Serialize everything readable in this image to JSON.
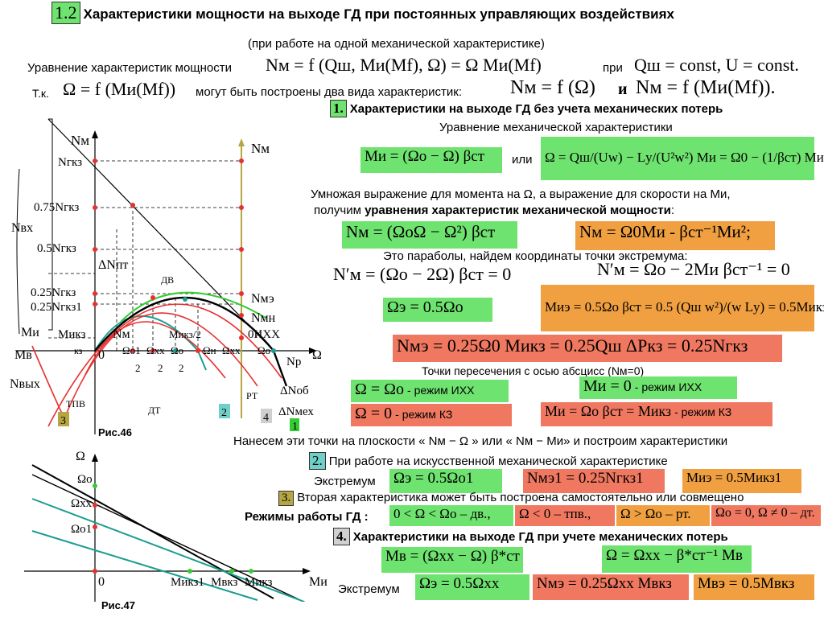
{
  "title": {
    "number": "1.2",
    "text": "Характеристики мощности на выходе ГД при постоянных управляющих воздействиях",
    "subtitle": "(при работе на одной механической характеристике)"
  },
  "colors": {
    "green": "#6fe36f",
    "orange": "#f0a040",
    "red": "#f07860",
    "teal": "#70d0c8",
    "olive": "#b5a642",
    "curve_green": "#33cc33",
    "curve_teal": "#1a9e8f",
    "curve_red": "#e83030"
  },
  "intro": {
    "eq_label": "Уравнение характеристик мощности",
    "eq_formula": "Nм = f (Qш, Mи(Mf), Ω) = Ω Mи(Mf)",
    "eq_when": "при",
    "eq_cond": "Qш = const, U = const.",
    "tk_label": "Т.к.",
    "tk_formula": "Ω = f (Mи(Mf))",
    "tk_text": "могут быть построены два вида характеристик:",
    "tk_f1": "Nм = f (Ω)",
    "tk_and": "и",
    "tk_f2": "Nм = f (Mи(Mf))."
  },
  "section1": {
    "number": "1.",
    "heading": "Характеристики на выходе ГД без учета механических потерь",
    "mech_label": "Уравнение механической характеристики",
    "f_mi": "Mи = (Ωо − Ω) βст",
    "or": "или",
    "f_omega": "Ω = Qш/(Uw) − Lу/(U²w²) Mи = Ω0 − (1/βст) Mи",
    "multiply_1": "Умножая выражение для момента на Ω, а выражение для скорости на Mи,",
    "multiply_2_a": "получим ",
    "multiply_2_b": "уравнения характеристик механической мощности",
    "multiply_2_c": ":",
    "f_nm1": "Nм = (ΩоΩ − Ω²) βст",
    "f_nm2": "Nм = Ω0Mи - βст⁻¹Mи²;",
    "parabola": "Это параболы, найдем координаты точки экстремума:",
    "f_nd1": "N′м = (Ωо − 2Ω) βст = 0",
    "f_nd2": "N′м = Ωо − 2Mи βст⁻¹ = 0",
    "f_oe": "Ωэ = 0.5Ωо",
    "f_mie": "Mиэ = 0.5Ωо βст = 0.5 (Qш w²)/(w Lу) = 0.5Mикз",
    "f_nme": "Nмэ = 0.25Ω0 Mикз = 0.25Qш ΔPкз = 0.25Nгкз",
    "cross": "Точки пересечения с осью абсцисс (Nм=0)",
    "p1_f": "Ω = Ωо",
    "p1_t": "- режим ИХХ",
    "p2_f": "Mи = 0",
    "p2_t": "- режим ИХХ",
    "p3_f": "Ω = 0",
    "p3_t": "- режим КЗ",
    "p4_f": "Mи = Ωо βст = Mикз",
    "p4_t": "- режим КЗ",
    "plot": "Нанесем эти точки на плоскости « Nм − Ω » или « Nм − Mи» и построим характеристики"
  },
  "section2": {
    "number": "2.",
    "text": "При работе на искусственной механической характеристике",
    "ext_label": "Экстремум",
    "f1": "Ωэ = 0.5Ωо1",
    "f2": "Nмэ1 = 0.25Nгкз1",
    "f3": "Mиэ = 0.5Mикз1"
  },
  "section3": {
    "number": "3.",
    "text": "Вторая характеристика может быть построена самостоятельно или совмещено",
    "modes_label": "Режимы работы ГД :",
    "m1": "0 < Ω < Ωо – дв.,",
    "m2": "Ω < 0 – тпв.,",
    "m3": "Ω > Ωо – рт.",
    "m4": "Ωо = 0, Ω ≠ 0 – дт."
  },
  "section4": {
    "number": "4.",
    "heading": "Характеристики на выходе ГД при учете механических потерь",
    "f1": "Mв = (Ωxx − Ω) β*ст",
    "f2": "Ω = Ωxx − β*ст⁻¹ Mв",
    "ext_label": "Экстремум",
    "f3": "Ωэ = 0.5Ωxx",
    "f4": "Nмэ = 0.25Ωxx Mвкз",
    "f5": "Mвэ = 0.5Mвкз"
  },
  "fig46": {
    "caption": "Рис.46",
    "labels": {
      "nm_top": "Nм",
      "ngkz": "Nгкз",
      "n075": "0.75Nгкз",
      "n05": "0.5Nгкз",
      "n025a": "0.25Nгкз",
      "n025b": "0.25Nгкз1",
      "nvx": "Nвх",
      "mi": "Mи",
      "mikz": "Mикз",
      "mv": "Mв",
      "kz": "кз",
      "zero": "0",
      "nvyx": "Nвых",
      "tpv": "ТПВ",
      "dt": "ДТ",
      "rt": "РТ",
      "dv": "ДВ",
      "dnpt": "ΔNпт",
      "nm_mid": "Nм",
      "mikz2": "Mикз/2",
      "nm_right": "Nм",
      "nme": "Nмэ",
      "nmn": "Nмн",
      "o_ixx": "0ИХХ",
      "omega_axis": "Ω",
      "np": "Nр",
      "dnob": "ΔNоб",
      "dnmex": "ΔNмех",
      "om1": "Ωо1",
      "om1_den": "2",
      "omxx": "Ωxx",
      "omxx_den": "2",
      "omo": "Ωо",
      "omo_den": "2",
      "omn": "Ωн",
      "omxx2": "Ωxx",
      "omo2": "Ωо",
      "m1": "1",
      "m2": "2",
      "m3": "3",
      "m4": "4"
    }
  },
  "fig47": {
    "caption": "Рис.47",
    "labels": {
      "omega": "Ω",
      "omo": "Ωо",
      "omxx": "Ωxx",
      "omo1": "Ωо1",
      "zero": "0",
      "mikz1": "Mикз1",
      "mvkz": "Mвкз",
      "mikz": "Mикз",
      "mi": "Mи"
    }
  }
}
